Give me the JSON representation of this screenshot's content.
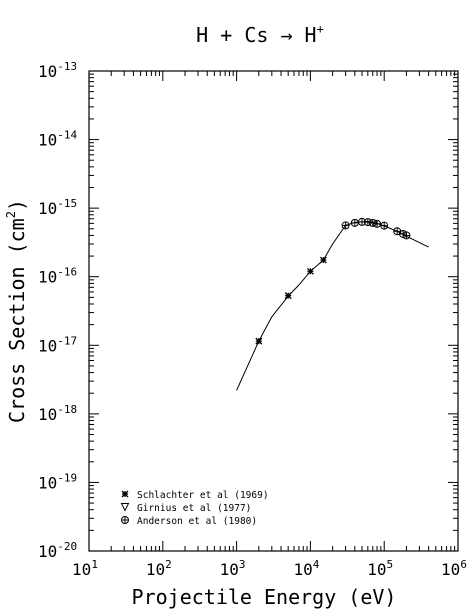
{
  "chart_data": {
    "type": "scatter",
    "title": "H + Cs → H",
    "title_superscript": "+",
    "xlabel": "Projectile Energy (eV)",
    "ylabel": "Cross Section (cm",
    "ylabel_superscript": "2",
    "ylabel_tail": ")",
    "xscale": "log",
    "yscale": "log",
    "xlim": [
      10,
      1000000
    ],
    "ylim": [
      1e-20,
      1e-13
    ],
    "grid": false,
    "legend_position": "bottom-left",
    "x_tick_labels": [
      {
        "value": 10,
        "base": "10",
        "exp": "1"
      },
      {
        "value": 100,
        "base": "10",
        "exp": "2"
      },
      {
        "value": 1000,
        "base": "10",
        "exp": "3"
      },
      {
        "value": 10000,
        "base": "10",
        "exp": "4"
      },
      {
        "value": 100000,
        "base": "10",
        "exp": "5"
      },
      {
        "value": 1000000,
        "base": "10",
        "exp": "6"
      }
    ],
    "y_tick_labels": [
      {
        "value": 1e-20,
        "base": "10",
        "exp": "-20"
      },
      {
        "value": 1e-19,
        "base": "10",
        "exp": "-19"
      },
      {
        "value": 1e-18,
        "base": "10",
        "exp": "-18"
      },
      {
        "value": 1e-17,
        "base": "10",
        "exp": "-17"
      },
      {
        "value": 1e-16,
        "base": "10",
        "exp": "-16"
      },
      {
        "value": 1e-15,
        "base": "10",
        "exp": "-15"
      },
      {
        "value": 1e-14,
        "base": "10",
        "exp": "-14"
      },
      {
        "value": 1e-13,
        "base": "10",
        "exp": "-13"
      }
    ],
    "fit_curve": {
      "points": [
        [
          1000,
          2.2e-18
        ],
        [
          2000,
          1.15e-17
        ],
        [
          3000,
          2.6e-17
        ],
        [
          5000,
          5.2e-17
        ],
        [
          7000,
          7.6e-17
        ],
        [
          10000,
          1.2e-16
        ],
        [
          15000,
          1.75e-16
        ],
        [
          20000,
          3e-16
        ],
        [
          30000,
          5.6e-16
        ],
        [
          40000,
          6.2e-16
        ],
        [
          60000,
          6.4e-16
        ],
        [
          80000,
          6e-16
        ],
        [
          100000,
          5.5e-16
        ],
        [
          150000,
          4.6e-16
        ],
        [
          200000,
          3.9e-16
        ],
        [
          400000,
          2.7e-16
        ]
      ]
    },
    "series": [
      {
        "name": "Schlachter et al (1969)",
        "marker": "asterisk",
        "points": [
          [
            2000,
            1.15e-17
          ],
          [
            5000,
            5.3e-17
          ],
          [
            10000,
            1.2e-16
          ],
          [
            15000,
            1.75e-16
          ]
        ]
      },
      {
        "name": "Girnius et al (1977)",
        "marker": "triangle-down",
        "points": []
      },
      {
        "name": "Anderson et al (1980)",
        "marker": "circle-plus",
        "points": [
          [
            30000,
            5.6e-16
          ],
          [
            40000,
            6.1e-16
          ],
          [
            50000,
            6.3e-16
          ],
          [
            60000,
            6.25e-16
          ],
          [
            70000,
            6.1e-16
          ],
          [
            80000,
            5.9e-16
          ],
          [
            100000,
            5.55e-16
          ],
          [
            150000,
            4.6e-16
          ],
          [
            180000,
            4.2e-16
          ],
          [
            200000,
            4e-16
          ]
        ]
      }
    ]
  }
}
